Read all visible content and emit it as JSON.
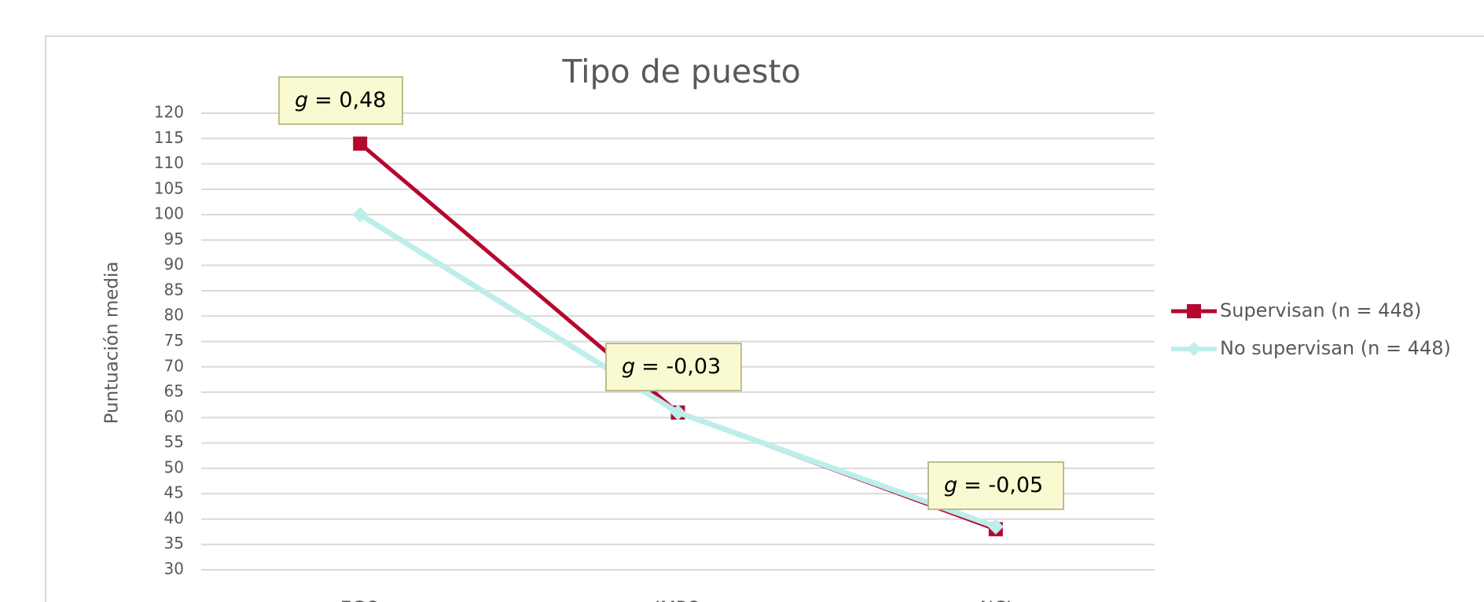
{
  "chart_data": {
    "type": "line",
    "title": "Tipo de puesto",
    "y_label": "Puntuación media",
    "categories": [
      "EGO",
      "IMPO",
      "NCI"
    ],
    "series": [
      {
        "name": "Supervisan (n = 448)",
        "color": "#b5082e",
        "marker": "square",
        "values": [
          114,
          61,
          38
        ]
      },
      {
        "name": "No supervisan (n = 448)",
        "color": "#bdeeea",
        "marker": "diamond",
        "values": [
          100,
          61,
          38.5
        ]
      }
    ],
    "ylim": [
      30,
      120
    ],
    "yticks": [
      30,
      35,
      40,
      45,
      50,
      55,
      60,
      65,
      70,
      75,
      80,
      85,
      90,
      95,
      100,
      105,
      110,
      115,
      120
    ],
    "grid": true,
    "legend": "right",
    "annotations": [
      {
        "symbol": "g",
        "text": "= 0,48"
      },
      {
        "symbol": "g",
        "text": "= -0,03"
      },
      {
        "symbol": "g",
        "text": "= -0,05"
      }
    ]
  }
}
